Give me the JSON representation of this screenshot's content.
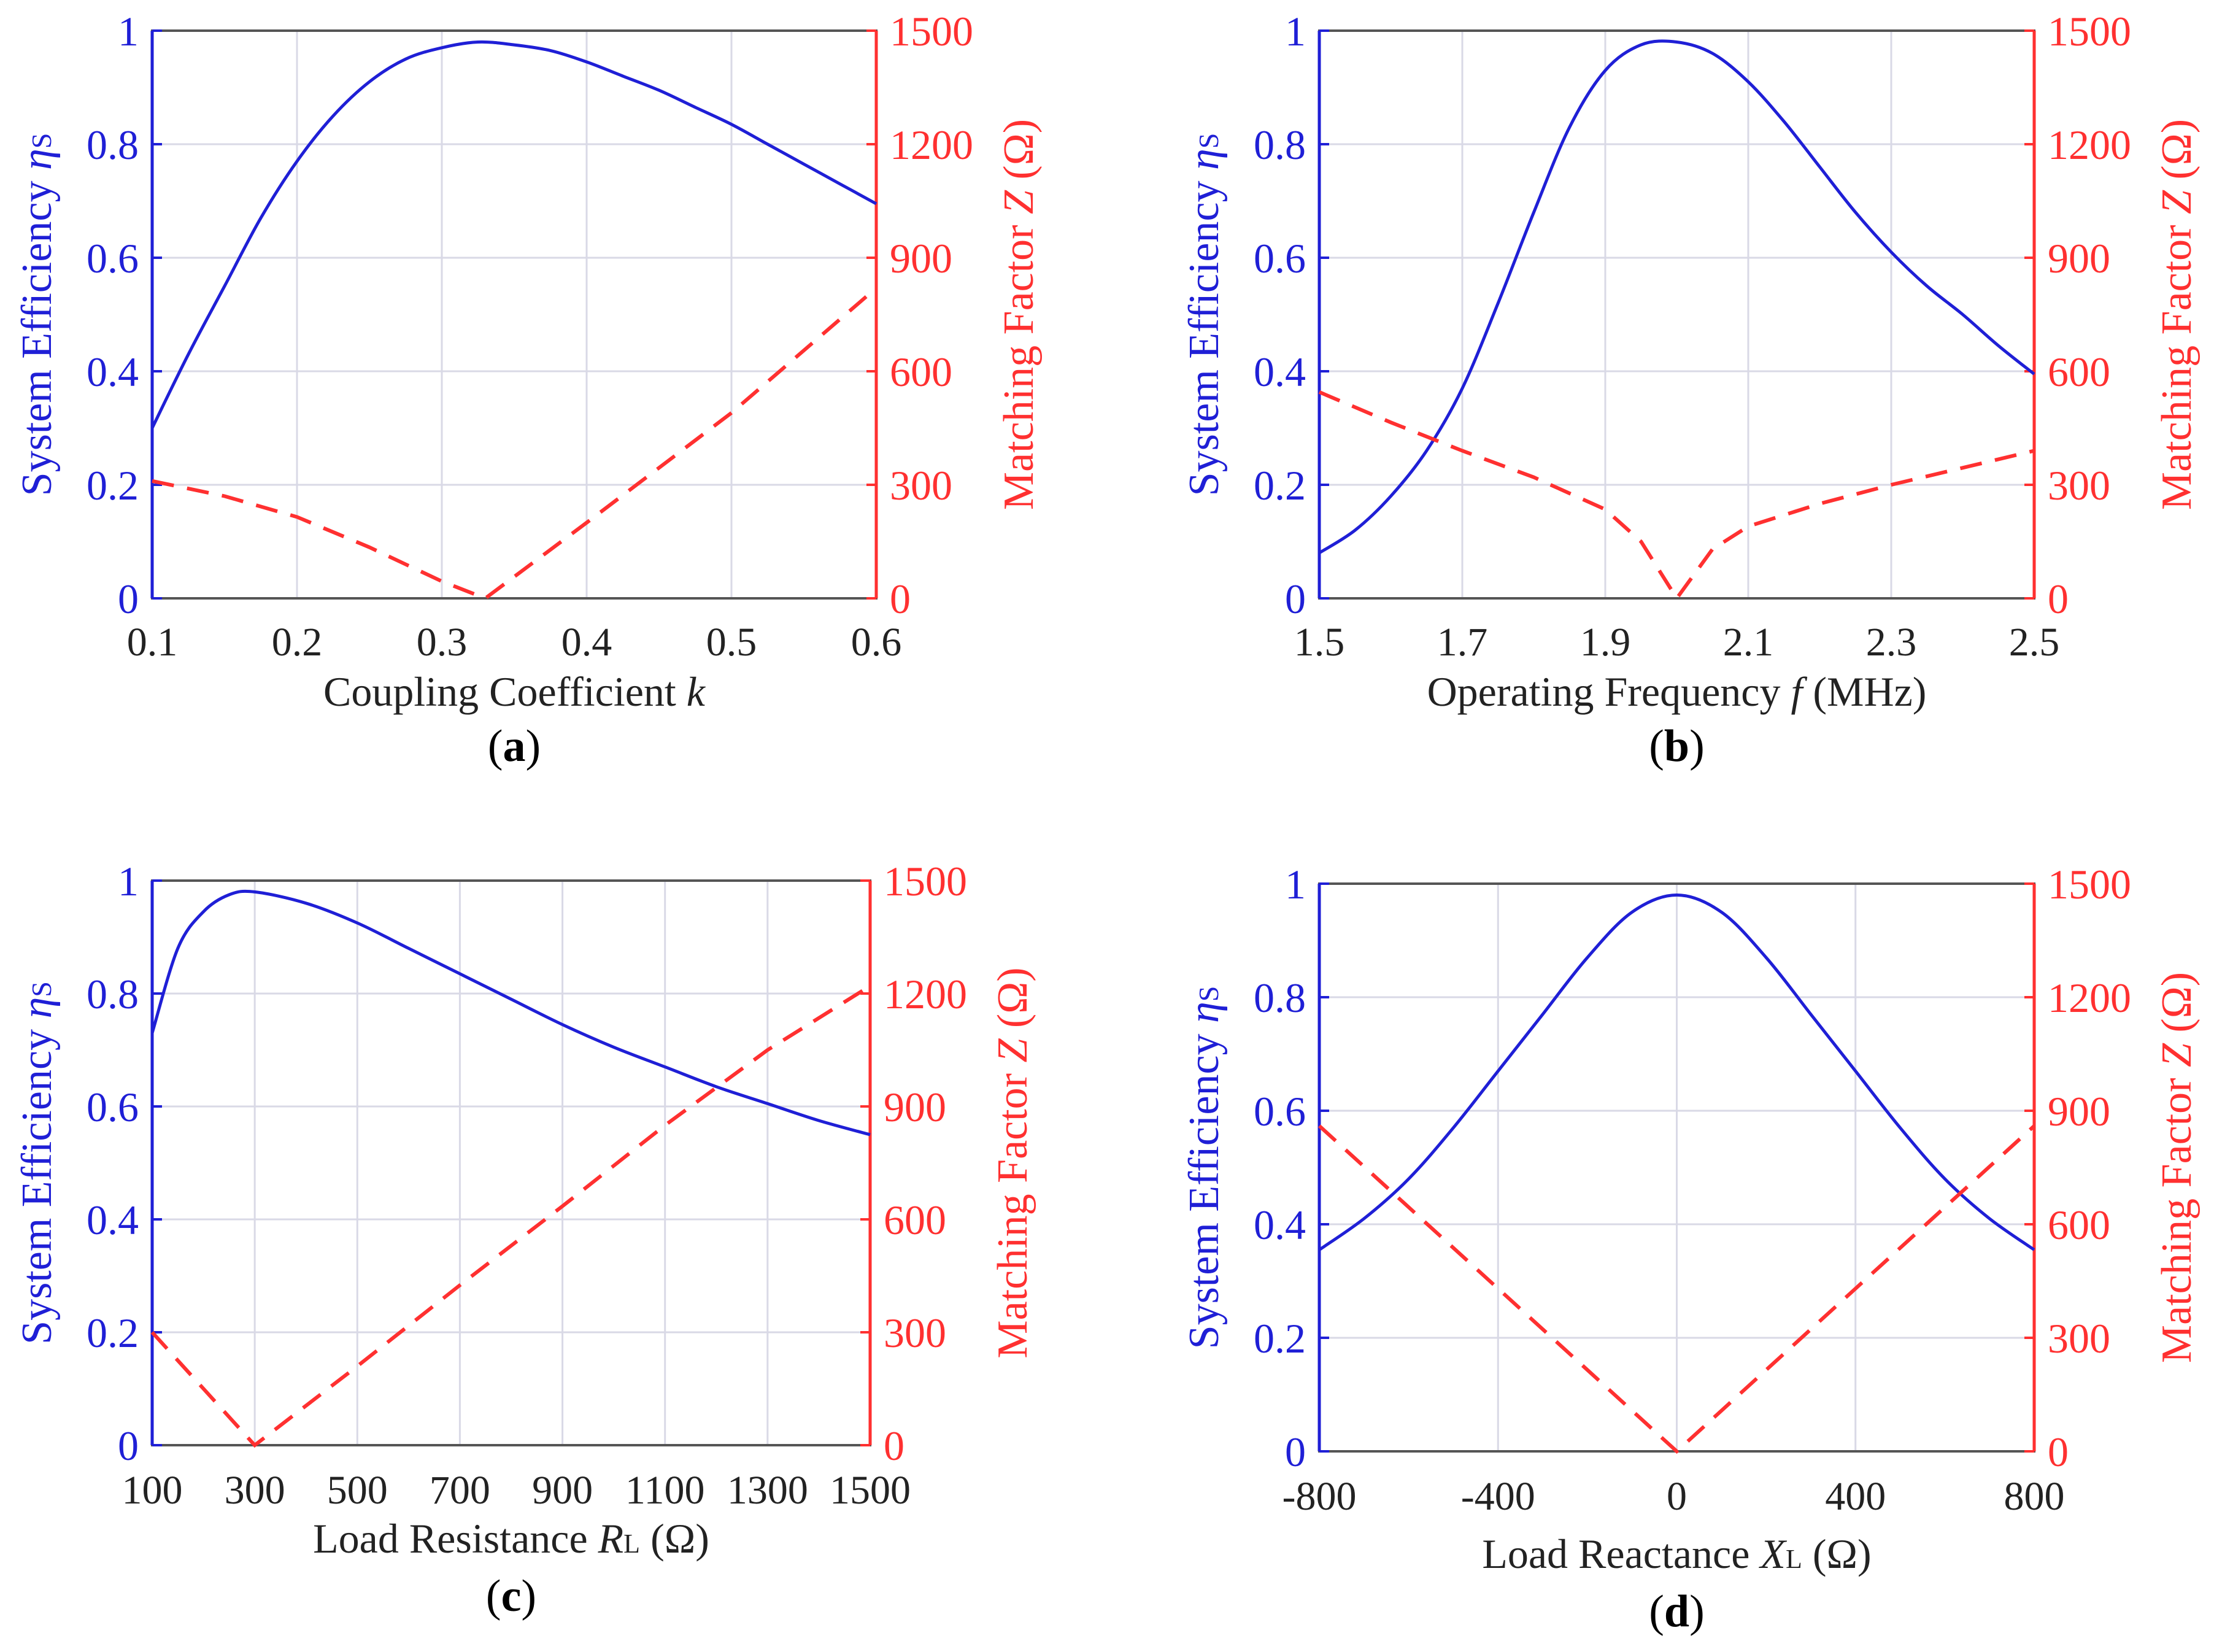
{
  "colors": {
    "efficiency": "#1f1fd6",
    "matching": "#ff3030",
    "grid": "#d9d9e6",
    "frame": "#555555",
    "text": "#222222"
  },
  "chart_data": [
    {
      "type": "line",
      "panel_label": "a",
      "xlabel": "Coupling Coefficient",
      "xsymbol": "k",
      "xsub": "",
      "xunit": "",
      "ylabel_left": "System Efficiency",
      "ylabel_left_symbol": "η",
      "ylabel_left_sub": "S",
      "ylabel_right": "Matching Factor",
      "ylabel_right_symbol": "Z",
      "ylabel_right_unit": " (Ω)",
      "xlim": [
        0.1,
        0.6
      ],
      "xticks": [
        0.1,
        0.2,
        0.3,
        0.4,
        0.5,
        0.6
      ],
      "xtick_labels": [
        "0.1",
        "0.2",
        "0.3",
        "0.4",
        "0.5",
        "0.6"
      ],
      "ylim_left": [
        0,
        1
      ],
      "yticks_left_labels": [
        "0",
        "0.2",
        "0.4",
        "0.6",
        "0.8",
        "1"
      ],
      "ylim_right": [
        0,
        1500
      ],
      "yticks_right_labels": [
        "0",
        "300",
        "600",
        "900",
        "1200",
        "1500"
      ],
      "grid": true,
      "series": [
        {
          "axis": "left",
          "style": "solid",
          "x": [
            0.1,
            0.125,
            0.15,
            0.175,
            0.2,
            0.225,
            0.25,
            0.275,
            0.3,
            0.325,
            0.35,
            0.375,
            0.4,
            0.425,
            0.45,
            0.475,
            0.5,
            0.525,
            0.55,
            0.575,
            0.6
          ],
          "y": [
            0.3,
            0.43,
            0.55,
            0.67,
            0.77,
            0.85,
            0.91,
            0.95,
            0.97,
            0.98,
            0.975,
            0.965,
            0.945,
            0.92,
            0.895,
            0.865,
            0.835,
            0.8,
            0.765,
            0.73,
            0.695
          ]
        },
        {
          "axis": "right",
          "style": "dashed",
          "x": [
            0.1,
            0.15,
            0.2,
            0.25,
            0.3,
            0.33,
            0.4,
            0.5,
            0.6
          ],
          "y": [
            310,
            270,
            215,
            135,
            45,
            0,
            200,
            490,
            820
          ]
        }
      ]
    },
    {
      "type": "line",
      "panel_label": "b",
      "xlabel": "Operating Frequency",
      "xsymbol": "f",
      "xsub": "",
      "xunit": " (MHz)",
      "ylabel_left": "System Efficiency",
      "ylabel_left_symbol": "η",
      "ylabel_left_sub": "S",
      "ylabel_right": "Matching Factor",
      "ylabel_right_symbol": "Z",
      "ylabel_right_unit": " (Ω)",
      "xlim": [
        1.5,
        2.5
      ],
      "xticks": [
        1.5,
        1.7,
        1.9,
        2.1,
        2.3,
        2.5
      ],
      "xtick_labels": [
        "1.5",
        "1.7",
        "1.9",
        "2.1",
        "2.3",
        "2.5"
      ],
      "ylim_left": [
        0,
        1
      ],
      "yticks_left_labels": [
        "0",
        "0.2",
        "0.4",
        "0.6",
        "0.8",
        "1"
      ],
      "ylim_right": [
        0,
        1500
      ],
      "yticks_right_labels": [
        "0",
        "300",
        "600",
        "900",
        "1200",
        "1500"
      ],
      "grid": true,
      "series": [
        {
          "axis": "left",
          "style": "solid",
          "x": [
            1.5,
            1.55,
            1.6,
            1.65,
            1.7,
            1.75,
            1.8,
            1.85,
            1.9,
            1.95,
            2.0,
            2.05,
            2.1,
            2.15,
            2.2,
            2.25,
            2.3,
            2.35,
            2.4,
            2.45,
            2.5
          ],
          "y": [
            0.08,
            0.12,
            0.18,
            0.26,
            0.37,
            0.52,
            0.68,
            0.83,
            0.93,
            0.975,
            0.98,
            0.96,
            0.91,
            0.84,
            0.76,
            0.68,
            0.61,
            0.55,
            0.5,
            0.445,
            0.395
          ]
        },
        {
          "axis": "right",
          "style": "dashed",
          "x": [
            1.5,
            1.6,
            1.7,
            1.8,
            1.9,
            1.95,
            2.0,
            2.05,
            2.1,
            2.2,
            2.3,
            2.4,
            2.5
          ],
          "y": [
            545,
            465,
            390,
            320,
            235,
            150,
            0,
            130,
            190,
            250,
            300,
            345,
            390
          ]
        }
      ]
    },
    {
      "type": "line",
      "panel_label": "c",
      "xlabel": "Load Resistance",
      "xsymbol": "R",
      "xsub": "L",
      "xunit": " (Ω)",
      "ylabel_left": "System Efficiency",
      "ylabel_left_symbol": "η",
      "ylabel_left_sub": "S",
      "ylabel_right": "Matching Factor",
      "ylabel_right_symbol": "Z",
      "ylabel_right_unit": " (Ω)",
      "xlim": [
        100,
        1500
      ],
      "xticks": [
        100,
        300,
        500,
        700,
        900,
        1100,
        1300,
        1500
      ],
      "xtick_labels": [
        "100",
        "300",
        "500",
        "700",
        "900",
        "1100",
        "1300",
        "1500"
      ],
      "ylim_left": [
        0,
        1
      ],
      "yticks_left_labels": [
        "0",
        "0.2",
        "0.4",
        "0.6",
        "0.8",
        "1"
      ],
      "ylim_right": [
        0,
        1500
      ],
      "yticks_right_labels": [
        "0",
        "300",
        "600",
        "900",
        "1200",
        "1500"
      ],
      "grid": true,
      "series": [
        {
          "axis": "left",
          "style": "solid",
          "x": [
            100,
            150,
            200,
            250,
            300,
            400,
            500,
            600,
            700,
            800,
            900,
            1000,
            1100,
            1200,
            1300,
            1400,
            1500
          ],
          "y": [
            0.73,
            0.88,
            0.945,
            0.975,
            0.98,
            0.96,
            0.925,
            0.88,
            0.835,
            0.79,
            0.745,
            0.705,
            0.67,
            0.635,
            0.605,
            0.575,
            0.55
          ]
        },
        {
          "axis": "right",
          "style": "dashed",
          "x": [
            100,
            200,
            300,
            500,
            700,
            900,
            1100,
            1300,
            1500
          ],
          "y": [
            300,
            150,
            0,
            210,
            425,
            635,
            850,
            1050,
            1220
          ]
        }
      ]
    },
    {
      "type": "line",
      "panel_label": "d",
      "xlabel": "Load Reactance",
      "xsymbol": "X",
      "xsub": "L",
      "xunit": " (Ω)",
      "ylabel_left": "System Efficiency",
      "ylabel_left_symbol": "η",
      "ylabel_left_sub": "S",
      "ylabel_right": "Matching Factor",
      "ylabel_right_symbol": "Z",
      "ylabel_right_unit": " (Ω)",
      "xlim": [
        -800,
        800
      ],
      "xticks": [
        -800,
        -400,
        0,
        400,
        800
      ],
      "xtick_labels": [
        "-800",
        "-400",
        "0",
        "400",
        "800"
      ],
      "ylim_left": [
        0,
        1
      ],
      "yticks_left_labels": [
        "0",
        "0.2",
        "0.4",
        "0.6",
        "0.8",
        "1"
      ],
      "ylim_right": [
        0,
        1500
      ],
      "yticks_right_labels": [
        "0",
        "300",
        "600",
        "900",
        "1200",
        "1500"
      ],
      "grid": true,
      "series": [
        {
          "axis": "left",
          "style": "solid",
          "x": [
            -800,
            -700,
            -600,
            -500,
            -400,
            -300,
            -200,
            -100,
            0,
            100,
            200,
            300,
            400,
            500,
            600,
            700,
            800
          ],
          "y": [
            0.355,
            0.41,
            0.48,
            0.57,
            0.67,
            0.77,
            0.87,
            0.95,
            0.98,
            0.95,
            0.87,
            0.77,
            0.67,
            0.57,
            0.48,
            0.41,
            0.355
          ]
        },
        {
          "axis": "right",
          "style": "dashed",
          "x": [
            -800,
            -400,
            0,
            400,
            800
          ],
          "y": [
            860,
            430,
            0,
            430,
            860
          ]
        }
      ]
    }
  ]
}
